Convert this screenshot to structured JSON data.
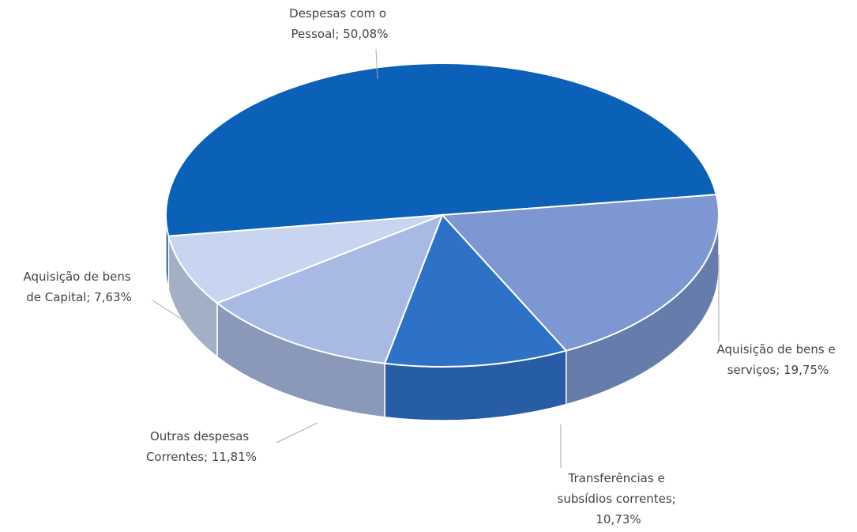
{
  "chart_data": {
    "type": "pie",
    "values": [
      50.08,
      19.75,
      10.73,
      11.81,
      7.63
    ],
    "value_labels": [
      "Despesas com o Pessoal; 50,08%",
      "Aquisição de bens e serviços; 19,75%",
      "Transferências e subsídios correntes; 10,73%",
      "Outras despesas Correntes; 11,81%",
      "Aquisição de bens de Capital; 7,63%"
    ],
    "colors": [
      "#0b61b7",
      "#7c97d1",
      "#2e72c8",
      "#a8b9e3",
      "#c7d5f0"
    ]
  }
}
